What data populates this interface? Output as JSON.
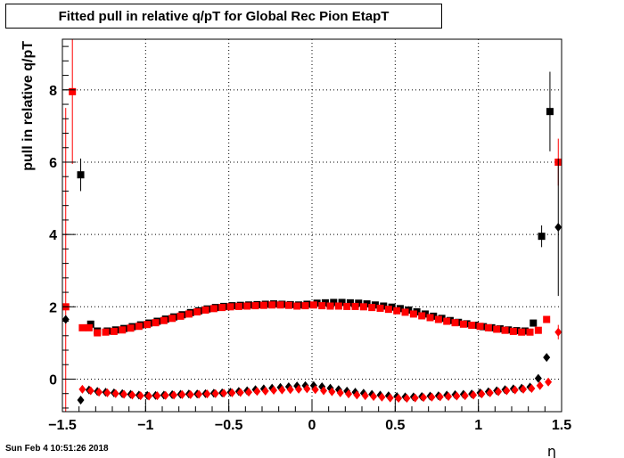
{
  "page": {
    "timestamp": "Sun Feb  4 10:51:26 2018"
  },
  "chart_data": {
    "type": "scatter",
    "title": "Fitted pull in relative q/pT for Global Rec Pion EtapT",
    "xlabel": "η",
    "ylabel": "pull in relative q/pT",
    "xlim": [
      -1.5,
      1.5
    ],
    "ylim": [
      -0.9,
      9.4
    ],
    "xticks": [
      -1.5,
      -1,
      -0.5,
      0,
      0.5,
      1,
      1.5
    ],
    "xtick_labels": [
      "−1.5",
      "−1",
      "−0.5",
      "0",
      "0.5",
      "1",
      "1.5"
    ],
    "yticks": [
      0,
      2,
      4,
      6,
      8
    ],
    "ytick_labels": [
      "0",
      "2",
      "4",
      "6",
      "8"
    ],
    "grid": true,
    "colors": {
      "black": "#000000",
      "red": "#ff0000"
    },
    "series": [
      {
        "marker": "square",
        "color": "#000000",
        "points": [
          {
            "x": -1.39,
            "y": 5.65,
            "err": 0.45
          },
          {
            "x": -1.33,
            "y": 1.52
          },
          {
            "x": -1.29,
            "y": 1.33
          },
          {
            "x": -1.23,
            "y": 1.33
          },
          {
            "x": -1.18,
            "y": 1.36
          },
          {
            "x": -1.13,
            "y": 1.4
          },
          {
            "x": -1.08,
            "y": 1.45
          },
          {
            "x": -1.03,
            "y": 1.5
          },
          {
            "x": -0.98,
            "y": 1.55
          },
          {
            "x": -0.93,
            "y": 1.6
          },
          {
            "x": -0.88,
            "y": 1.66
          },
          {
            "x": -0.83,
            "y": 1.72
          },
          {
            "x": -0.78,
            "y": 1.78
          },
          {
            "x": -0.73,
            "y": 1.84
          },
          {
            "x": -0.68,
            "y": 1.89
          },
          {
            "x": -0.63,
            "y": 1.94
          },
          {
            "x": -0.58,
            "y": 1.98
          },
          {
            "x": -0.53,
            "y": 2.01
          },
          {
            "x": -0.48,
            "y": 2.03
          },
          {
            "x": -0.43,
            "y": 2.04
          },
          {
            "x": -0.38,
            "y": 2.05
          },
          {
            "x": -0.33,
            "y": 2.06
          },
          {
            "x": -0.28,
            "y": 2.07
          },
          {
            "x": -0.23,
            "y": 2.08
          },
          {
            "x": -0.18,
            "y": 2.07
          },
          {
            "x": -0.13,
            "y": 2.06
          },
          {
            "x": -0.08,
            "y": 2.05
          },
          {
            "x": -0.03,
            "y": 2.07
          },
          {
            "x": 0.03,
            "y": 2.1
          },
          {
            "x": 0.08,
            "y": 2.11
          },
          {
            "x": 0.13,
            "y": 2.12
          },
          {
            "x": 0.18,
            "y": 2.12
          },
          {
            "x": 0.23,
            "y": 2.11
          },
          {
            "x": 0.28,
            "y": 2.1
          },
          {
            "x": 0.33,
            "y": 2.08
          },
          {
            "x": 0.38,
            "y": 2.05
          },
          {
            "x": 0.43,
            "y": 2.02
          },
          {
            "x": 0.48,
            "y": 1.99
          },
          {
            "x": 0.53,
            "y": 1.95
          },
          {
            "x": 0.58,
            "y": 1.91
          },
          {
            "x": 0.63,
            "y": 1.86
          },
          {
            "x": 0.68,
            "y": 1.8
          },
          {
            "x": 0.73,
            "y": 1.74
          },
          {
            "x": 0.78,
            "y": 1.68
          },
          {
            "x": 0.83,
            "y": 1.62
          },
          {
            "x": 0.88,
            "y": 1.57
          },
          {
            "x": 0.93,
            "y": 1.53
          },
          {
            "x": 0.98,
            "y": 1.49
          },
          {
            "x": 1.03,
            "y": 1.45
          },
          {
            "x": 1.08,
            "y": 1.42
          },
          {
            "x": 1.13,
            "y": 1.39
          },
          {
            "x": 1.18,
            "y": 1.36
          },
          {
            "x": 1.23,
            "y": 1.34
          },
          {
            "x": 1.28,
            "y": 1.33
          },
          {
            "x": 1.33,
            "y": 1.55
          },
          {
            "x": 1.38,
            "y": 3.95,
            "err": 0.3
          },
          {
            "x": 1.43,
            "y": 7.4,
            "err": 1.1
          }
        ]
      },
      {
        "marker": "square",
        "color": "#ff0000",
        "points": [
          {
            "x": -1.48,
            "y": 2.0,
            "err": 5.5
          },
          {
            "x": -1.44,
            "y": 7.95,
            "err": 2.0
          },
          {
            "x": -1.38,
            "y": 1.42
          },
          {
            "x": -1.34,
            "y": 1.42
          },
          {
            "x": -1.29,
            "y": 1.28
          },
          {
            "x": -1.24,
            "y": 1.3
          },
          {
            "x": -1.19,
            "y": 1.32
          },
          {
            "x": -1.14,
            "y": 1.36
          },
          {
            "x": -1.09,
            "y": 1.41
          },
          {
            "x": -1.04,
            "y": 1.46
          },
          {
            "x": -0.99,
            "y": 1.51
          },
          {
            "x": -0.94,
            "y": 1.56
          },
          {
            "x": -0.89,
            "y": 1.62
          },
          {
            "x": -0.84,
            "y": 1.68
          },
          {
            "x": -0.79,
            "y": 1.74
          },
          {
            "x": -0.74,
            "y": 1.8
          },
          {
            "x": -0.69,
            "y": 1.86
          },
          {
            "x": -0.64,
            "y": 1.91
          },
          {
            "x": -0.59,
            "y": 1.95
          },
          {
            "x": -0.54,
            "y": 1.98
          },
          {
            "x": -0.49,
            "y": 2.0
          },
          {
            "x": -0.44,
            "y": 2.01
          },
          {
            "x": -0.39,
            "y": 2.02
          },
          {
            "x": -0.34,
            "y": 2.03
          },
          {
            "x": -0.29,
            "y": 2.04
          },
          {
            "x": -0.24,
            "y": 2.05
          },
          {
            "x": -0.19,
            "y": 2.05
          },
          {
            "x": -0.14,
            "y": 2.04
          },
          {
            "x": -0.09,
            "y": 2.02
          },
          {
            "x": -0.04,
            "y": 2.03
          },
          {
            "x": 0.01,
            "y": 2.05
          },
          {
            "x": 0.06,
            "y": 2.03
          },
          {
            "x": 0.11,
            "y": 2.02
          },
          {
            "x": 0.16,
            "y": 2.02
          },
          {
            "x": 0.21,
            "y": 2.01
          },
          {
            "x": 0.26,
            "y": 2.01
          },
          {
            "x": 0.31,
            "y": 2.0
          },
          {
            "x": 0.36,
            "y": 1.98
          },
          {
            "x": 0.41,
            "y": 1.96
          },
          {
            "x": 0.46,
            "y": 1.93
          },
          {
            "x": 0.51,
            "y": 1.89
          },
          {
            "x": 0.56,
            "y": 1.85
          },
          {
            "x": 0.61,
            "y": 1.8
          },
          {
            "x": 0.66,
            "y": 1.75
          },
          {
            "x": 0.71,
            "y": 1.7
          },
          {
            "x": 0.76,
            "y": 1.65
          },
          {
            "x": 0.81,
            "y": 1.6
          },
          {
            "x": 0.86,
            "y": 1.56
          },
          {
            "x": 0.91,
            "y": 1.52
          },
          {
            "x": 0.96,
            "y": 1.49
          },
          {
            "x": 1.01,
            "y": 1.46
          },
          {
            "x": 1.06,
            "y": 1.42
          },
          {
            "x": 1.11,
            "y": 1.38
          },
          {
            "x": 1.16,
            "y": 1.35
          },
          {
            "x": 1.21,
            "y": 1.32
          },
          {
            "x": 1.26,
            "y": 1.3
          },
          {
            "x": 1.31,
            "y": 1.3
          },
          {
            "x": 1.36,
            "y": 1.35
          },
          {
            "x": 1.41,
            "y": 1.65
          },
          {
            "x": 1.48,
            "y": 6.0,
            "err": 0.65
          }
        ]
      },
      {
        "marker": "diamond",
        "color": "#000000",
        "points": [
          {
            "x": -1.48,
            "y": 1.65
          },
          {
            "x": -1.39,
            "y": -0.58
          },
          {
            "x": -1.34,
            "y": -0.3
          },
          {
            "x": -1.29,
            "y": -0.34
          },
          {
            "x": -1.24,
            "y": -0.36
          },
          {
            "x": -1.19,
            "y": -0.38
          },
          {
            "x": -1.14,
            "y": -0.4
          },
          {
            "x": -1.09,
            "y": -0.42
          },
          {
            "x": -1.04,
            "y": -0.44
          },
          {
            "x": -0.99,
            "y": -0.45
          },
          {
            "x": -0.94,
            "y": -0.45
          },
          {
            "x": -0.89,
            "y": -0.44
          },
          {
            "x": -0.84,
            "y": -0.43
          },
          {
            "x": -0.79,
            "y": -0.42
          },
          {
            "x": -0.74,
            "y": -0.41
          },
          {
            "x": -0.69,
            "y": -0.41
          },
          {
            "x": -0.64,
            "y": -0.4
          },
          {
            "x": -0.59,
            "y": -0.39
          },
          {
            "x": -0.54,
            "y": -0.38
          },
          {
            "x": -0.49,
            "y": -0.36
          },
          {
            "x": -0.44,
            "y": -0.34
          },
          {
            "x": -0.39,
            "y": -0.32
          },
          {
            "x": -0.34,
            "y": -0.29
          },
          {
            "x": -0.29,
            "y": -0.27
          },
          {
            "x": -0.24,
            "y": -0.25
          },
          {
            "x": -0.19,
            "y": -0.23
          },
          {
            "x": -0.14,
            "y": -0.21
          },
          {
            "x": -0.09,
            "y": -0.19
          },
          {
            "x": -0.04,
            "y": -0.18
          },
          {
            "x": 0.01,
            "y": -0.18
          },
          {
            "x": 0.06,
            "y": -0.21
          },
          {
            "x": 0.11,
            "y": -0.25
          },
          {
            "x": 0.16,
            "y": -0.29
          },
          {
            "x": 0.21,
            "y": -0.33
          },
          {
            "x": 0.26,
            "y": -0.36
          },
          {
            "x": 0.31,
            "y": -0.39
          },
          {
            "x": 0.36,
            "y": -0.42
          },
          {
            "x": 0.41,
            "y": -0.44
          },
          {
            "x": 0.46,
            "y": -0.46
          },
          {
            "x": 0.51,
            "y": -0.48
          },
          {
            "x": 0.56,
            "y": -0.49
          },
          {
            "x": 0.61,
            "y": -0.49
          },
          {
            "x": 0.66,
            "y": -0.48
          },
          {
            "x": 0.71,
            "y": -0.47
          },
          {
            "x": 0.76,
            "y": -0.46
          },
          {
            "x": 0.81,
            "y": -0.44
          },
          {
            "x": 0.86,
            "y": -0.43
          },
          {
            "x": 0.91,
            "y": -0.42
          },
          {
            "x": 0.96,
            "y": -0.41
          },
          {
            "x": 1.01,
            "y": -0.38
          },
          {
            "x": 1.06,
            "y": -0.35
          },
          {
            "x": 1.11,
            "y": -0.32
          },
          {
            "x": 1.16,
            "y": -0.29
          },
          {
            "x": 1.21,
            "y": -0.27
          },
          {
            "x": 1.26,
            "y": -0.25
          },
          {
            "x": 1.31,
            "y": -0.22
          },
          {
            "x": 1.36,
            "y": 0.02
          },
          {
            "x": 1.41,
            "y": 0.6
          },
          {
            "x": 1.48,
            "y": 4.2,
            "err": 1.9
          }
        ]
      },
      {
        "marker": "diamond",
        "color": "#ff0000",
        "points": [
          {
            "x": -1.38,
            "y": -0.28
          },
          {
            "x": -1.33,
            "y": -0.32
          },
          {
            "x": -1.28,
            "y": -0.36
          },
          {
            "x": -1.23,
            "y": -0.38
          },
          {
            "x": -1.18,
            "y": -0.4
          },
          {
            "x": -1.13,
            "y": -0.42
          },
          {
            "x": -1.08,
            "y": -0.44
          },
          {
            "x": -1.03,
            "y": -0.46
          },
          {
            "x": -0.98,
            "y": -0.47
          },
          {
            "x": -0.93,
            "y": -0.46
          },
          {
            "x": -0.88,
            "y": -0.45
          },
          {
            "x": -0.83,
            "y": -0.44
          },
          {
            "x": -0.78,
            "y": -0.43
          },
          {
            "x": -0.73,
            "y": -0.43
          },
          {
            "x": -0.68,
            "y": -0.42
          },
          {
            "x": -0.63,
            "y": -0.41
          },
          {
            "x": -0.58,
            "y": -0.4
          },
          {
            "x": -0.53,
            "y": -0.39
          },
          {
            "x": -0.48,
            "y": -0.38
          },
          {
            "x": -0.43,
            "y": -0.37
          },
          {
            "x": -0.38,
            "y": -0.36
          },
          {
            "x": -0.33,
            "y": -0.34
          },
          {
            "x": -0.28,
            "y": -0.33
          },
          {
            "x": -0.23,
            "y": -0.31
          },
          {
            "x": -0.18,
            "y": -0.3
          },
          {
            "x": -0.13,
            "y": -0.29
          },
          {
            "x": -0.08,
            "y": -0.28
          },
          {
            "x": -0.03,
            "y": -0.27
          },
          {
            "x": 0.02,
            "y": -0.29
          },
          {
            "x": 0.07,
            "y": -0.32
          },
          {
            "x": 0.12,
            "y": -0.35
          },
          {
            "x": 0.17,
            "y": -0.38
          },
          {
            "x": 0.22,
            "y": -0.41
          },
          {
            "x": 0.27,
            "y": -0.44
          },
          {
            "x": 0.32,
            "y": -0.46
          },
          {
            "x": 0.37,
            "y": -0.48
          },
          {
            "x": 0.42,
            "y": -0.5
          },
          {
            "x": 0.47,
            "y": -0.52
          },
          {
            "x": 0.52,
            "y": -0.53
          },
          {
            "x": 0.57,
            "y": -0.53
          },
          {
            "x": 0.62,
            "y": -0.52
          },
          {
            "x": 0.67,
            "y": -0.51
          },
          {
            "x": 0.72,
            "y": -0.5
          },
          {
            "x": 0.77,
            "y": -0.49
          },
          {
            "x": 0.82,
            "y": -0.48
          },
          {
            "x": 0.87,
            "y": -0.47
          },
          {
            "x": 0.92,
            "y": -0.46
          },
          {
            "x": 0.97,
            "y": -0.44
          },
          {
            "x": 1.02,
            "y": -0.41
          },
          {
            "x": 1.07,
            "y": -0.38
          },
          {
            "x": 1.12,
            "y": -0.35
          },
          {
            "x": 1.17,
            "y": -0.32
          },
          {
            "x": 1.22,
            "y": -0.3
          },
          {
            "x": 1.27,
            "y": -0.28
          },
          {
            "x": 1.32,
            "y": -0.26
          },
          {
            "x": 1.37,
            "y": -0.18
          },
          {
            "x": 1.42,
            "y": -0.08
          },
          {
            "x": 1.48,
            "y": 1.3,
            "err": 0.2
          }
        ]
      }
    ]
  }
}
